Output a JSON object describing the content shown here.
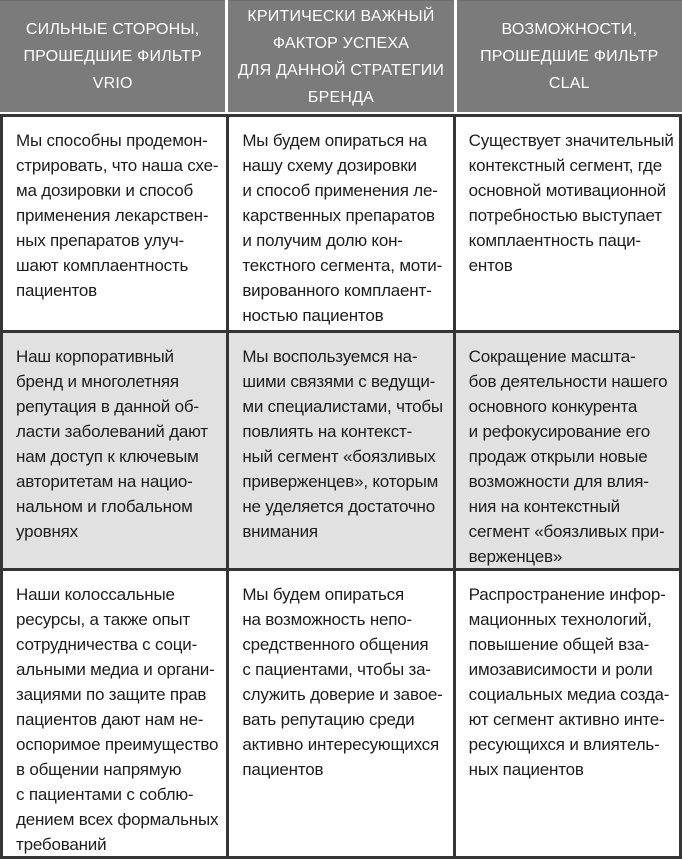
{
  "colors": {
    "header_bg": "#7b7b7b",
    "header_text": "#ffffff",
    "border": "#353535",
    "row_bg": "#ffffff",
    "row_shaded_bg": "#e2e1e1",
    "body_text": "#1d1d1d"
  },
  "table": {
    "headers": [
      "СИЛЬНЫЕ СТОРОНЫ,\nПРОШЕДШИЕ ФИЛЬТР VRIO",
      "КРИТИЧЕСКИ ВАЖНЫЙ\nФАКТОР УСПЕХА\nДЛЯ ДАННОЙ СТРАТЕГИИ\nБРЕНДА",
      "ВОЗМОЖНОСТИ,\nПРОШЕДШИЕ ФИЛЬТР CLAL"
    ],
    "rows": [
      {
        "shaded": false,
        "cells": [
          "Мы способны продемон-\nстрировать, что наша схе-\nма дозировки и способ\nприменения лекарствен-\nных препаратов улуч-\nшают комплаентность\nпациентов",
          "Мы будем опираться на\nнашу схему дозировки\nи способ применения ле-\nкарственных препаратов\nи получим долю кон-\nтекстного сегмента, моти-\nвированного комплаент-\nностью пациентов",
          "Существует значительный\nконтекстный сегмент, где\nосновной мотивационной\nпотребностью выступает\nкомплаентность паци-\nентов"
        ]
      },
      {
        "shaded": true,
        "cells": [
          "Наш корпоративный\nбренд и многолетняя\nрепутация в данной об-\nласти заболеваний дают\nнам доступ к ключевым\nавторитетам на нацио-\nнальном и глобальном\nуровнях",
          "Мы воспользуемся на-\nшими связями с ведущи-\nми специалистами, чтобы\nповлиять на контекст-\nный сегмент «боязливых\nприверженцев», которым\nне уделяется достаточно\nвнимания",
          "Сокращение масшта-\nбов деятельности нашего\nосновного конкурента\nи рефокусирование его\nпродаж открыли новые\nвозможности для влия-\nния на контекстный\nсегмент «боязливых при-\nверженцев»"
        ]
      },
      {
        "shaded": false,
        "cells": [
          "Наши колоссальные\nресурсы, а также опыт\nсотрудничества с соци-\nальными медиа и органи-\nзациями по защите прав\nпациентов дают нам не-\nоспоримое преимущество\nв общении напрямую\nс пациентами с соблю-\nдением всех формальных\nтребований",
          "Мы будем опираться\nна возможность непо-\nсредственного общения\nс пациентами, чтобы за-\nслужить доверие и завое-\nвать репутацию среди\nактивно интересующихся\nпациентов",
          "Распространение инфор-\nмационных технологий,\nповышение общей вза-\nимозависимости и роли\nсоциальных медиа созда-\nют сегмент активно инте-\nресующихся и влиятель-\nных пациентов"
        ]
      }
    ]
  }
}
